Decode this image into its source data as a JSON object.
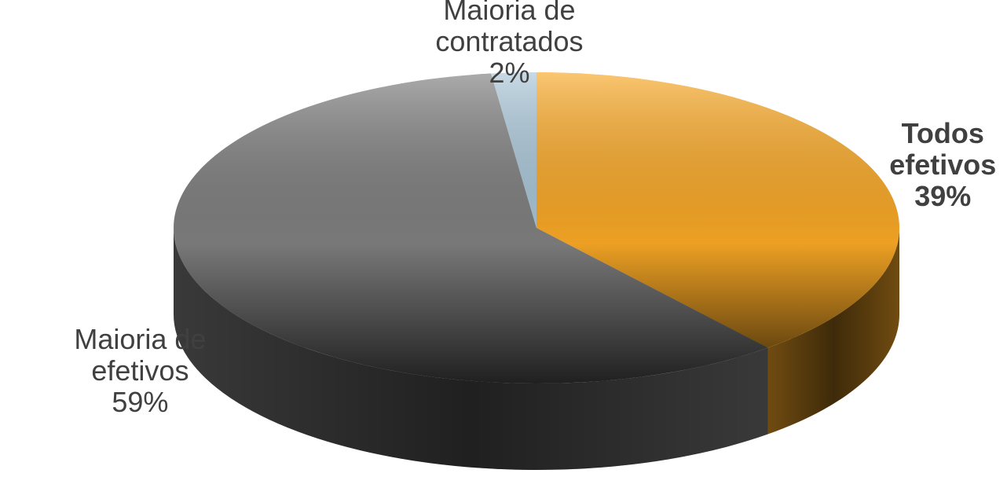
{
  "chart_data": {
    "type": "pie",
    "categories": [
      "Todos efetivos",
      "Maioria de efetivos",
      "Maioria de contratados"
    ],
    "values": [
      39,
      59,
      2
    ],
    "value_labels": [
      "39%",
      "59%",
      "2%"
    ],
    "colors": [
      "#f9a825",
      "#7f7f7f",
      "#a9c6d8"
    ]
  }
}
